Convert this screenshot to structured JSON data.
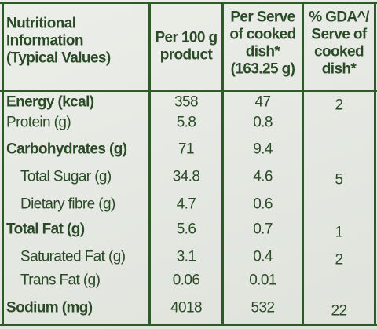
{
  "header": {
    "nutrient": [
      "Nutritional",
      "Information",
      "(Typical Values)"
    ],
    "per_100g": [
      "Per 100 g",
      "product"
    ],
    "per_serve": [
      "Per Serve",
      "of cooked",
      "dish*",
      "(163.25 g)"
    ],
    "gda": [
      "% GDA^/",
      "Serve of",
      "cooked",
      "dish*"
    ]
  },
  "table": {
    "rows": [
      [
        "Energy (kcal)",
        "358",
        "47",
        "2"
      ],
      [
        "Protein (g)",
        "5.8",
        "0.8",
        null
      ],
      [
        "Carbohydrates (g)",
        "71",
        "9.4",
        null
      ],
      [
        "Total Sugar (g)",
        "34.8",
        "4.6",
        "5"
      ],
      [
        "Dietary fibre (g)",
        "4.7",
        "0.6",
        null
      ],
      [
        "Total Fat (g)",
        "5.6",
        "0.7",
        "1"
      ],
      [
        "Saturated Fat (g)",
        "3.1",
        "0.4",
        "2"
      ],
      [
        "Trans Fat (g)",
        "0.06",
        "0.01",
        null
      ],
      [
        "Sodium (mg)",
        "4018",
        "532",
        "22"
      ]
    ]
  }
}
